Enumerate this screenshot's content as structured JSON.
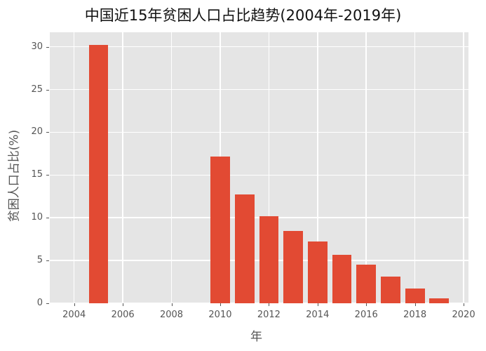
{
  "chart_data": {
    "type": "bar",
    "title": "中国近15年贫困人口占比趋势(2004年-2019年)",
    "xlabel": "年",
    "ylabel": "贫困人口占比(%)",
    "categories": [
      2005,
      2010,
      2011,
      2012,
      2013,
      2014,
      2015,
      2016,
      2017,
      2018,
      2019
    ],
    "values": [
      30.2,
      17.2,
      12.7,
      10.2,
      8.5,
      7.2,
      5.7,
      4.5,
      3.1,
      1.7,
      0.6
    ],
    "xlim": [
      2003,
      2020.2
    ],
    "ylim": [
      0,
      31.7
    ],
    "xticks": [
      2004,
      2006,
      2008,
      2010,
      2012,
      2014,
      2016,
      2018,
      2020
    ],
    "yticks": [
      0,
      5,
      10,
      15,
      20,
      25,
      30
    ],
    "bar_color": "#e24a33",
    "background": "#e5e5e5",
    "grid": true,
    "legend": null
  }
}
